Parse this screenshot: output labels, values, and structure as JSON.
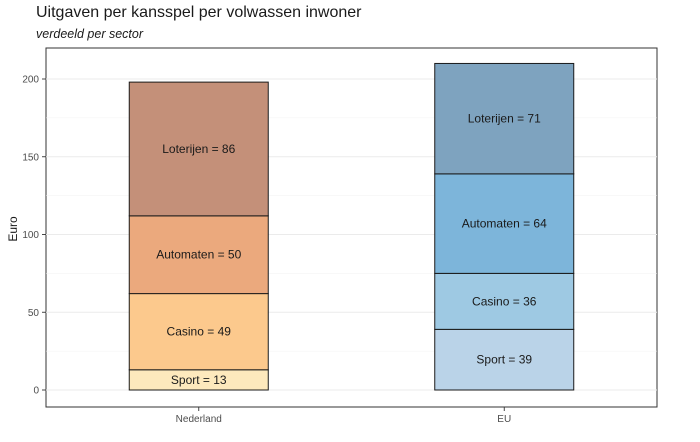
{
  "chart_data": {
    "type": "bar",
    "stacked": true,
    "title": "Uitgaven per kansspel per volwassen inwoner",
    "subtitle": "verdeeld per sector",
    "xlabel": "",
    "ylabel": "Euro",
    "ylim": [
      0,
      210
    ],
    "yticks": [
      0,
      50,
      100,
      150,
      200
    ],
    "grid": true,
    "categories": [
      "Nederland",
      "EU"
    ],
    "series": [
      {
        "stack_order": 1,
        "values": [
          13,
          39
        ],
        "labels": [
          "Sport = 13",
          "Sport = 39"
        ],
        "colors": [
          "#fde9bd",
          "#bad3e8"
        ]
      },
      {
        "stack_order": 2,
        "values": [
          49,
          36
        ],
        "labels": [
          "Casino = 49",
          "Casino = 36"
        ],
        "colors": [
          "#fcc98d",
          "#9ec9e3"
        ]
      },
      {
        "stack_order": 3,
        "values": [
          50,
          64
        ],
        "labels": [
          "Automaten = 50",
          "Automaten = 64"
        ],
        "colors": [
          "#eba97d",
          "#7db5da"
        ]
      },
      {
        "stack_order": 4,
        "values": [
          86,
          71
        ],
        "labels": [
          "Loterijen = 86",
          "Loterijen = 71"
        ],
        "colors": [
          "#c49079",
          "#7ea3bf"
        ]
      }
    ]
  }
}
